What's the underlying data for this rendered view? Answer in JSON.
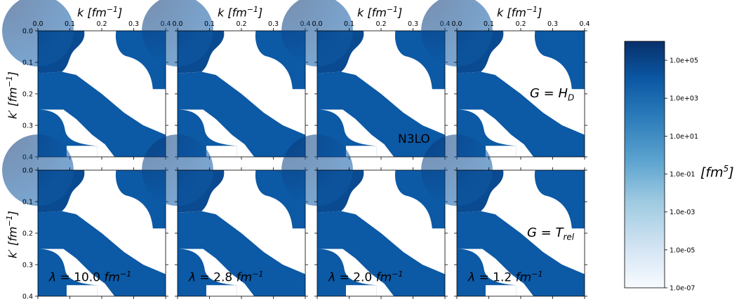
{
  "chart_data": {
    "type": "heatmap",
    "x_axis_label": "k [fm^-1]",
    "y_axis_label": "k' [fm^-1]",
    "x_ticks": [
      "0.0",
      "0.1",
      "0.2",
      "0.3",
      "0.4"
    ],
    "y_ticks": [
      "0.0",
      "0.1",
      "0.2",
      "0.3",
      "0.4"
    ],
    "xlim": [
      0.0,
      0.4
    ],
    "ylim": [
      0.4,
      0.0
    ],
    "colorbar": {
      "label": "[fm^5]",
      "scale": "log",
      "range": [
        1e-07,
        1000000.0
      ],
      "ticks": [
        "1.0e+05",
        "1.0e+03",
        "1.0e+01",
        "1.0e-01",
        "1.0e-03",
        "1.0e-05",
        "1.0e-07"
      ],
      "colormap": "Blues"
    },
    "panels": [
      {
        "row": 1,
        "col": 1,
        "annotation": ""
      },
      {
        "row": 1,
        "col": 2,
        "annotation": ""
      },
      {
        "row": 1,
        "col": 3,
        "annotation": "N3LO"
      },
      {
        "row": 1,
        "col": 4,
        "annotation": "G = H_D"
      },
      {
        "row": 2,
        "col": 1,
        "annotation": "λ = 10.0 fm^-1"
      },
      {
        "row": 2,
        "col": 2,
        "annotation": "λ = 2.8 fm^-1"
      },
      {
        "row": 2,
        "col": 3,
        "annotation": "λ = 2.0 fm^-1"
      },
      {
        "row": 2,
        "col": 4,
        "annotation": "G = T_rel"
      }
    ]
  },
  "labels": {
    "k": "k",
    "kprime": "k′",
    "unit_fm": "fm",
    "unit_exp": "−1",
    "cb_unit": "fm",
    "cb_exp": "5",
    "n3lo": "N3LO",
    "g": "G",
    "hd_main": "H",
    "hd_sub": "D",
    "trel_main": "T",
    "trel_sub": "rel",
    "lambda": "λ",
    "l1": "10.0",
    "l2": "2.8",
    "l3": "2.0",
    "l4": "1.2"
  },
  "colors": {
    "dark": "#08306b",
    "mid": "#0b57a3",
    "light": "#f7fbff"
  }
}
